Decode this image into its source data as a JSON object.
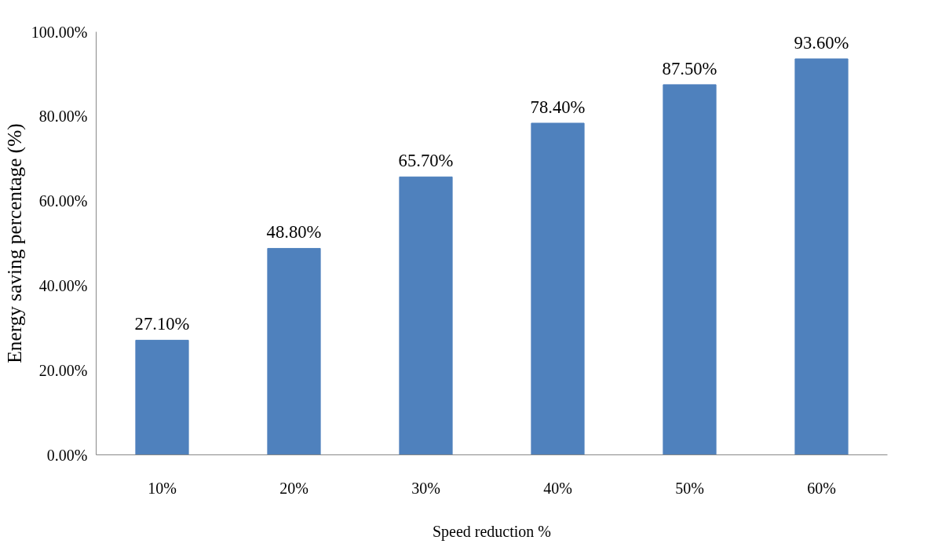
{
  "chart_data": {
    "type": "bar",
    "xlabel": "Speed reduction %",
    "ylabel": "Energy saving percentage (%)",
    "categories": [
      "10%",
      "20%",
      "30%",
      "40%",
      "50%",
      "60%"
    ],
    "values": [
      27.1,
      48.8,
      65.7,
      78.4,
      87.5,
      93.6
    ],
    "value_labels": [
      "27.10%",
      "48.80%",
      "65.70%",
      "78.40%",
      "87.50%",
      "93.60%"
    ],
    "color": "#4f81bd",
    "ylim": [
      0,
      100
    ],
    "yticks": [
      {
        "value": 0,
        "label": "0.00%"
      },
      {
        "value": 20,
        "label": "20.00%"
      },
      {
        "value": 40,
        "label": "40.00%"
      },
      {
        "value": 60,
        "label": "60.00%"
      },
      {
        "value": 80,
        "label": "80.00%"
      },
      {
        "value": 100,
        "label": "100.00%"
      }
    ],
    "grid": false
  }
}
